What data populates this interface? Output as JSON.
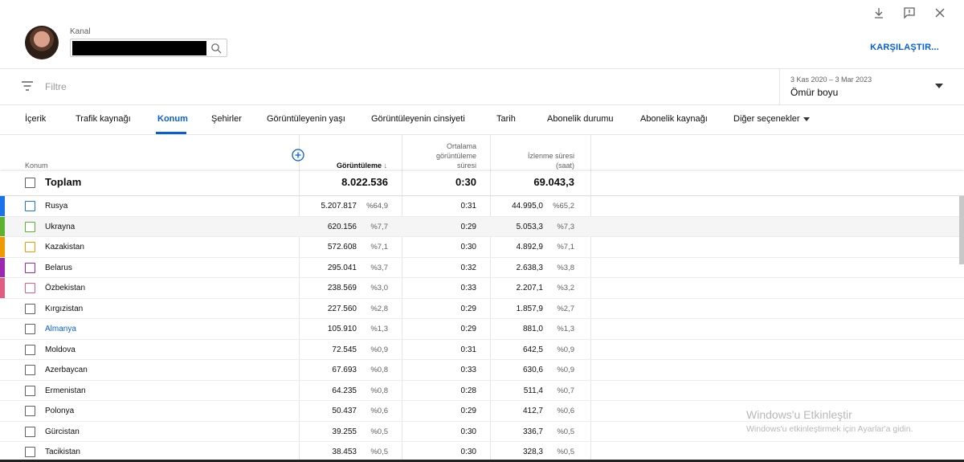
{
  "header": {
    "kanal_label": "Kanal",
    "compare_label": "KARŞILAŞTIR..."
  },
  "icons": [
    "download-icon",
    "feedback-icon",
    "close-icon",
    "search-icon",
    "filter-icon",
    "add-column-icon"
  ],
  "filter": {
    "placeholder": "Filtre"
  },
  "date": {
    "range": "3 Kas 2020 – 3 Mar 2023",
    "value": "Ömür boyu"
  },
  "tabs": [
    {
      "label": "İçerik"
    },
    {
      "label": "Trafik kaynağı"
    },
    {
      "label": "Konum",
      "active": true
    },
    {
      "label": "Şehirler"
    },
    {
      "label": "Görüntüleyenin yaşı"
    },
    {
      "label": "Görüntüleyenin cinsiyeti"
    },
    {
      "label": "Tarih"
    },
    {
      "label": "Abonelik durumu"
    },
    {
      "label": "Abonelik kaynağı"
    },
    {
      "label": "Diğer seçenekler"
    }
  ],
  "table": {
    "headers": {
      "konum": "Konum",
      "views": "Görüntüleme",
      "avg1": "Ortalama",
      "avg2": "görüntüleme",
      "avg3": "süresi",
      "watch1": "İzlenme süresi",
      "watch2": "(saat)"
    },
    "total": {
      "label": "Toplam",
      "views": "8.022.536",
      "avg": "0:30",
      "watch": "69.043,3"
    },
    "rows": [
      {
        "country": "Rusya",
        "views": "5.207.817",
        "vpct": "%64,9",
        "avg": "0:31",
        "watch": "44.995,0",
        "wpct": "%65,2",
        "color": "#1a73e8",
        "checkbox": "#1a73e8"
      },
      {
        "country": "Ukrayna",
        "views": "620.156",
        "vpct": "%7,7",
        "avg": "0:29",
        "watch": "5.053,3",
        "wpct": "%7,3",
        "color": "#5fb130",
        "checkbox": "#5fb130"
      },
      {
        "country": "Kazakistan",
        "views": "572.608",
        "vpct": "%7,1",
        "avg": "0:30",
        "watch": "4.892,9",
        "wpct": "%7,1",
        "color": "#f29900",
        "checkbox": "#f29900"
      },
      {
        "country": "Belarus",
        "views": "295.041",
        "vpct": "%3,7",
        "avg": "0:32",
        "watch": "2.638,3",
        "wpct": "%3,8",
        "color": "#9c27b0",
        "checkbox": "#9c27b0"
      },
      {
        "country": "Özbekistan",
        "views": "238.569",
        "vpct": "%3,0",
        "avg": "0:33",
        "watch": "2.207,1",
        "wpct": "%3,2",
        "color": "#e05f80",
        "checkbox": "#e05f80"
      },
      {
        "country": "Kırgızistan",
        "views": "227.560",
        "vpct": "%2,8",
        "avg": "0:29",
        "watch": "1.857,9",
        "wpct": "%2,7"
      },
      {
        "country": "Almanya",
        "views": "105.910",
        "vpct": "%1,3",
        "avg": "0:29",
        "watch": "881,0",
        "wpct": "%1,3",
        "link": true
      },
      {
        "country": "Moldova",
        "views": "72.545",
        "vpct": "%0,9",
        "avg": "0:31",
        "watch": "642,5",
        "wpct": "%0,9"
      },
      {
        "country": "Azerbaycan",
        "views": "67.693",
        "vpct": "%0,8",
        "avg": "0:33",
        "watch": "630,6",
        "wpct": "%0,9"
      },
      {
        "country": "Ermenistan",
        "views": "64.235",
        "vpct": "%0,8",
        "avg": "0:28",
        "watch": "511,4",
        "wpct": "%0,7"
      },
      {
        "country": "Polonya",
        "views": "50.437",
        "vpct": "%0,6",
        "avg": "0:29",
        "watch": "412,7",
        "wpct": "%0,6"
      },
      {
        "country": "Gürcistan",
        "views": "39.255",
        "vpct": "%0,5",
        "avg": "0:30",
        "watch": "336,7",
        "wpct": "%0,5"
      },
      {
        "country": "Tacikistan",
        "views": "38.453",
        "vpct": "%0,5",
        "avg": "0:30",
        "watch": "328,3",
        "wpct": "%0,5"
      }
    ]
  },
  "watermark": {
    "title": "Windows'u Etkinleştir",
    "subtitle": "Windows'u etkinleştirmek için Ayarlar'a gidin."
  }
}
